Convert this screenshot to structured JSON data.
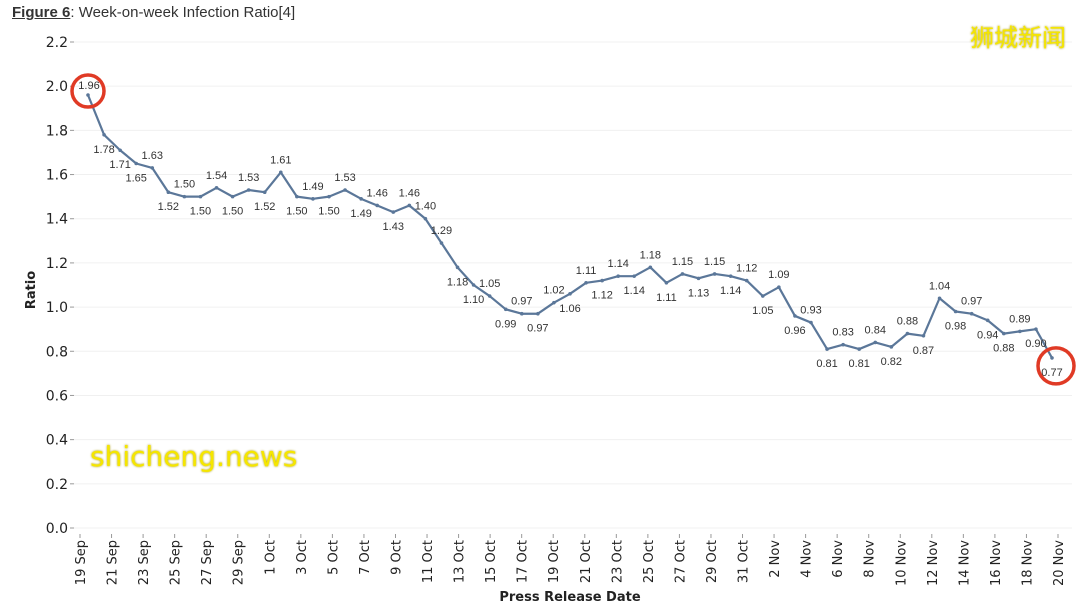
{
  "header": {
    "figure_label": "Figure 6",
    "title_rest": ": Week-on-week Infection Ratio[4]"
  },
  "watermarks": {
    "cn": "狮城新闻",
    "en": "shicheng.news"
  },
  "colors": {
    "line": "#5b7799",
    "highlight": "#e03a25",
    "watermark": "#f5e600"
  },
  "chart_data": {
    "type": "line",
    "title": "Week-on-week Infection Ratio",
    "xlabel": "Press Release Date",
    "ylabel": "Ratio",
    "ylim": [
      0,
      2.2
    ],
    "yticks": [
      "0.0",
      "0.2",
      "0.4",
      "0.6",
      "0.8",
      "1.0",
      "1.2",
      "1.4",
      "1.6",
      "1.8",
      "2.0",
      "2.2"
    ],
    "xticks": [
      "19 Sep",
      "21 Sep",
      "23 Sep",
      "25 Sep",
      "27 Sep",
      "29 Sep",
      "1 Oct",
      "3 Oct",
      "5 Oct",
      "7 Oct",
      "9 Oct",
      "11 Oct",
      "13 Oct",
      "15 Oct",
      "17 Oct",
      "19 Oct",
      "21 Oct",
      "23 Oct",
      "25 Oct",
      "27 Oct",
      "29 Oct",
      "31 Oct",
      "2 Nov",
      "4 Nov",
      "6 Nov",
      "8 Nov",
      "10 Nov",
      "12 Nov",
      "14 Nov",
      "16 Nov",
      "18 Nov",
      "20 Nov"
    ],
    "grid": true,
    "values": [
      1.96,
      1.78,
      1.71,
      1.65,
      1.63,
      1.52,
      1.5,
      1.5,
      1.54,
      1.5,
      1.53,
      1.52,
      1.61,
      1.5,
      1.49,
      1.5,
      1.53,
      1.49,
      1.46,
      1.43,
      1.46,
      1.4,
      1.29,
      1.18,
      1.1,
      1.05,
      0.99,
      0.97,
      0.97,
      1.02,
      1.06,
      1.11,
      1.12,
      1.14,
      1.14,
      1.18,
      1.11,
      1.15,
      1.13,
      1.15,
      1.14,
      1.12,
      1.05,
      1.09,
      0.96,
      0.93,
      0.81,
      0.83,
      0.81,
      0.84,
      0.82,
      0.88,
      0.87,
      1.04,
      0.98,
      0.97,
      0.94,
      0.88,
      0.89,
      0.9,
      0.77
    ],
    "highlighted": [
      "first",
      "last"
    ]
  }
}
